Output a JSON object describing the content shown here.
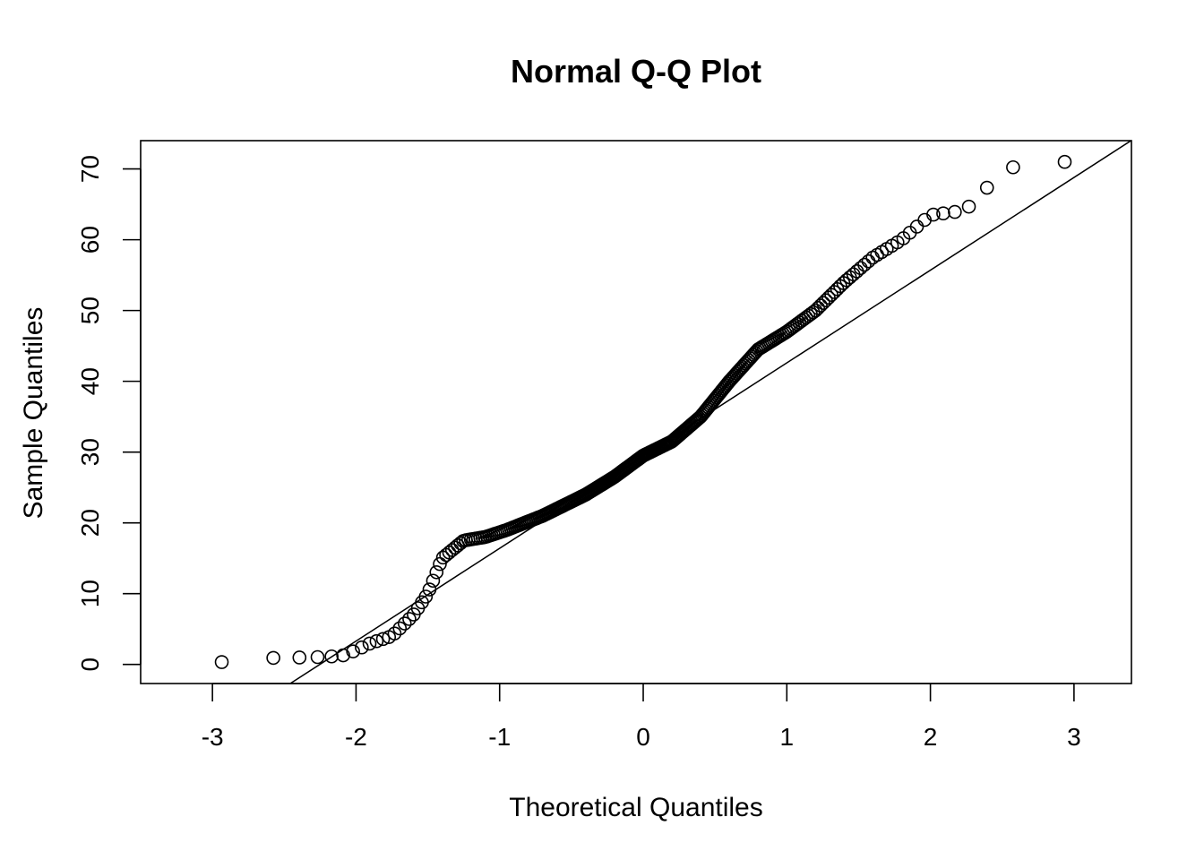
{
  "chart_data": {
    "type": "scatter",
    "title": "Normal Q-Q Plot",
    "xlabel": "Theoretical Quantiles",
    "ylabel": "Sample Quantiles",
    "xlim": [
      -3.5,
      3.4
    ],
    "ylim": [
      -2.7,
      74
    ],
    "xticks": [
      -3,
      -2,
      -1,
      0,
      1,
      2,
      3
    ],
    "yticks": [
      0,
      10,
      20,
      30,
      40,
      50,
      60,
      70
    ],
    "reference_line": {
      "intercept": 29.5,
      "slope": 13.1
    },
    "anchors": [
      [
        -3.15,
        0.2
      ],
      [
        -2.82,
        0.4
      ],
      [
        -2.65,
        0.9
      ],
      [
        -2.3,
        1.0
      ],
      [
        -2.1,
        1.2
      ],
      [
        -2.0,
        2.0
      ],
      [
        -1.9,
        3.0
      ],
      [
        -1.75,
        4.0
      ],
      [
        -1.6,
        7.0
      ],
      [
        -1.5,
        10.0
      ],
      [
        -1.4,
        15.0
      ],
      [
        -1.25,
        17.5
      ],
      [
        -1.1,
        18.0
      ],
      [
        -0.95,
        19.0
      ],
      [
        -0.7,
        21.0
      ],
      [
        -0.4,
        24.0
      ],
      [
        -0.2,
        26.5
      ],
      [
        0.0,
        29.5
      ],
      [
        0.2,
        31.5
      ],
      [
        0.4,
        35.0
      ],
      [
        0.6,
        40.0
      ],
      [
        0.8,
        44.5
      ],
      [
        1.0,
        47.0
      ],
      [
        1.2,
        50.0
      ],
      [
        1.4,
        54.0
      ],
      [
        1.6,
        57.5
      ],
      [
        1.8,
        60.0
      ],
      [
        2.0,
        63.5
      ],
      [
        2.2,
        64.0
      ],
      [
        2.3,
        65.0
      ],
      [
        2.38,
        67.0
      ],
      [
        2.46,
        69.0
      ],
      [
        2.55,
        70.0
      ],
      [
        2.66,
        71.0
      ],
      [
        2.83,
        71.0
      ],
      [
        3.15,
        71.0
      ]
    ],
    "n": 300
  }
}
